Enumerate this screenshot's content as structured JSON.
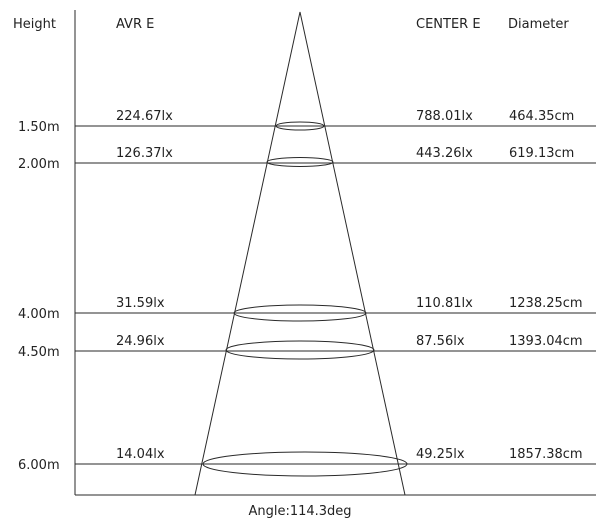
{
  "headers": {
    "height": "Height",
    "avr_e": "AVR E",
    "center_e": "CENTER E",
    "diameter": "Diameter"
  },
  "rows": [
    {
      "height": "1.50m",
      "avr_e": "224.67lx",
      "center_e": "788.01lx",
      "diameter": "464.35cm"
    },
    {
      "height": "2.00m",
      "avr_e": "126.37lx",
      "center_e": "443.26lx",
      "diameter": "619.13cm"
    },
    {
      "height": "4.00m",
      "avr_e": "31.59lx",
      "center_e": "110.81lx",
      "diameter": "1238.25cm"
    },
    {
      "height": "4.50m",
      "avr_e": "24.96lx",
      "center_e": "87.56lx",
      "diameter": "1393.04cm"
    },
    {
      "height": "6.00m",
      "avr_e": "14.04lx",
      "center_e": "49.25lx",
      "diameter": "1857.38cm"
    }
  ],
  "angle_label": "Angle:114.3deg",
  "colors": {
    "line": "#2a2a2a",
    "text": "#222222",
    "background": "#ffffff"
  }
}
